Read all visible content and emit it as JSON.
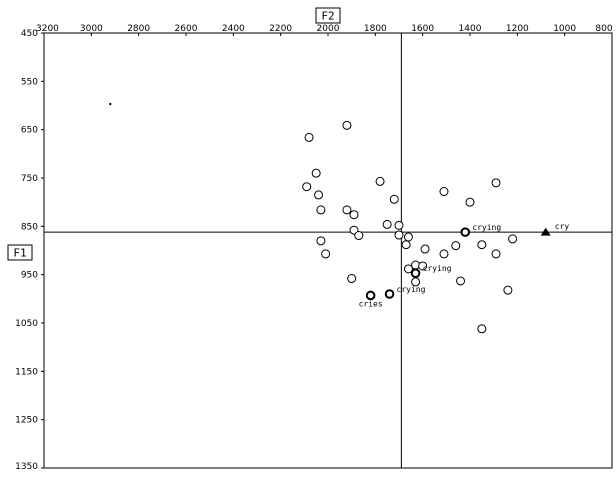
{
  "chart_data": {
    "type": "scatter",
    "title": "",
    "x_axis_name": "F2",
    "y_axis_name": "F1",
    "x_axis_reversed": true,
    "y_axis_inverted": true,
    "xlim": [
      3200,
      800
    ],
    "ylim": [
      450,
      1350
    ],
    "x_ticks": [
      "3200",
      "3000",
      "2800",
      "2600",
      "2400",
      "2200",
      "2000",
      "1800",
      "1600",
      "1400",
      "1200",
      "1000",
      "800"
    ],
    "y_ticks": [
      "450",
      "550",
      "650",
      "750",
      "850",
      "950",
      "1050",
      "1150",
      "1250",
      "1350"
    ],
    "x_tick_values": [
      3200,
      3000,
      2800,
      2600,
      2400,
      2200,
      2000,
      1800,
      1600,
      1400,
      1200,
      1000,
      800
    ],
    "y_tick_values": [
      450,
      550,
      650,
      750,
      850,
      950,
      1050,
      1150,
      1250,
      1350
    ],
    "crosshair": {
      "f2": 1690,
      "f1": 862
    },
    "grid": false,
    "legend": "none",
    "colors": {
      "marker": "#000000",
      "fill": "#ffffff",
      "frame": "#000000"
    },
    "series": [
      {
        "marker": "small-dot",
        "points": [
          {
            "f2": 2920,
            "f1": 597
          }
        ]
      },
      {
        "marker": "open-circle",
        "points": [
          {
            "f2": 2080,
            "f1": 666
          },
          {
            "f2": 1920,
            "f1": 641
          },
          {
            "f2": 2050,
            "f1": 740
          },
          {
            "f2": 1780,
            "f1": 757
          },
          {
            "f2": 2090,
            "f1": 768
          },
          {
            "f2": 2040,
            "f1": 785
          },
          {
            "f2": 1720,
            "f1": 794
          },
          {
            "f2": 2030,
            "f1": 816
          },
          {
            "f2": 1920,
            "f1": 816
          },
          {
            "f2": 1890,
            "f1": 826
          },
          {
            "f2": 1510,
            "f1": 778
          },
          {
            "f2": 1400,
            "f1": 800
          },
          {
            "f2": 1290,
            "f1": 760
          },
          {
            "f2": 1750,
            "f1": 846
          },
          {
            "f2": 1700,
            "f1": 848
          },
          {
            "f2": 1890,
            "f1": 858
          },
          {
            "f2": 1870,
            "f1": 869
          },
          {
            "f2": 1700,
            "f1": 868
          },
          {
            "f2": 1660,
            "f1": 872
          },
          {
            "f2": 1670,
            "f1": 888
          },
          {
            "f2": 2030,
            "f1": 880
          },
          {
            "f2": 1590,
            "f1": 897
          },
          {
            "f2": 1460,
            "f1": 890
          },
          {
            "f2": 1350,
            "f1": 888
          },
          {
            "f2": 1220,
            "f1": 876
          },
          {
            "f2": 2010,
            "f1": 907
          },
          {
            "f2": 1510,
            "f1": 907
          },
          {
            "f2": 1290,
            "f1": 907
          },
          {
            "f2": 1630,
            "f1": 930
          },
          {
            "f2": 1600,
            "f1": 932
          },
          {
            "f2": 1660,
            "f1": 938
          },
          {
            "f2": 1900,
            "f1": 958
          },
          {
            "f2": 1630,
            "f1": 965
          },
          {
            "f2": 1440,
            "f1": 963
          },
          {
            "f2": 1240,
            "f1": 982
          },
          {
            "f2": 1350,
            "f1": 1062
          }
        ]
      },
      {
        "marker": "bold-circle",
        "points": [
          {
            "f2": 1420,
            "f1": 862,
            "label": "crying"
          },
          {
            "f2": 1630,
            "f1": 947,
            "label": "crying"
          },
          {
            "f2": 1740,
            "f1": 990,
            "label": "crying"
          },
          {
            "f2": 1820,
            "f1": 993,
            "label": "cries"
          }
        ]
      },
      {
        "marker": "filled-triangle",
        "points": [
          {
            "f2": 1080,
            "f1": 862,
            "label": "cry"
          }
        ]
      }
    ]
  }
}
